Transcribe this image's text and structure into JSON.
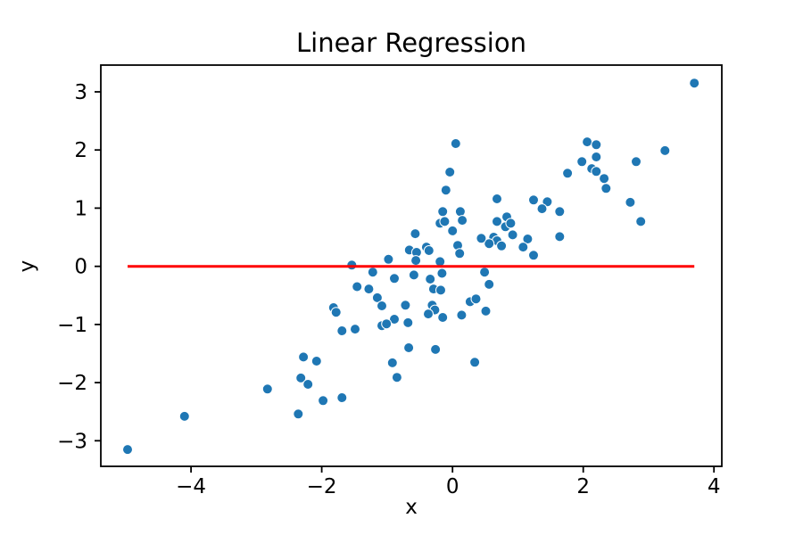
{
  "figure": {
    "background": "#ffffff",
    "text_color": "#000000"
  },
  "chart_data": {
    "type": "scatter",
    "title": "Linear Regression",
    "xlabel": "x",
    "ylabel": "y",
    "xlim": [
      -5.38,
      4.12
    ],
    "ylim": [
      -3.44,
      3.46
    ],
    "x_ticks": [
      -4,
      -2,
      0,
      2,
      4
    ],
    "y_ticks": [
      -3,
      -2,
      -1,
      0,
      1,
      2,
      3
    ],
    "grid": false,
    "legend": "none",
    "scatter": {
      "name": "data points",
      "color": "#1f77b4",
      "edge_color": "#ffffff",
      "points": [
        [
          -4.97,
          -3.15
        ],
        [
          -4.1,
          -2.58
        ],
        [
          -2.83,
          -2.11
        ],
        [
          -1.46,
          -0.35
        ],
        [
          -1.28,
          -0.39
        ],
        [
          -0.29,
          -0.39
        ],
        [
          -0.18,
          -0.41
        ],
        [
          -1.15,
          -0.54
        ],
        [
          -1.08,
          -0.68
        ],
        [
          -0.72,
          -0.67
        ],
        [
          -0.31,
          -0.67
        ],
        [
          -0.27,
          -0.75
        ],
        [
          -1.82,
          -0.71
        ],
        [
          -1.78,
          -0.79
        ],
        [
          0.14,
          -0.84
        ],
        [
          -0.15,
          -0.88
        ],
        [
          -0.37,
          -0.82
        ],
        [
          -0.89,
          -0.91
        ],
        [
          -0.68,
          -0.97
        ],
        [
          -1.08,
          -1.02
        ],
        [
          -1.01,
          -0.99
        ],
        [
          -1.69,
          -1.11
        ],
        [
          -1.49,
          -1.08
        ],
        [
          -0.67,
          -1.4
        ],
        [
          -0.26,
          -1.43
        ],
        [
          -2.28,
          -1.56
        ],
        [
          -2.08,
          -1.63
        ],
        [
          -0.92,
          -1.66
        ],
        [
          -0.85,
          -1.91
        ],
        [
          -2.32,
          -1.92
        ],
        [
          -2.21,
          -2.03
        ],
        [
          -1.98,
          -2.31
        ],
        [
          -1.69,
          -2.26
        ],
        [
          -2.36,
          -2.54
        ],
        [
          0.05,
          2.11
        ],
        [
          -0.04,
          1.62
        ],
        [
          -0.1,
          1.31
        ],
        [
          0.68,
          1.16
        ],
        [
          1.24,
          1.14
        ],
        [
          1.45,
          1.11
        ],
        [
          1.37,
          0.99
        ],
        [
          -0.15,
          0.94
        ],
        [
          0.12,
          0.94
        ],
        [
          -0.19,
          0.74
        ],
        [
          -0.12,
          0.77
        ],
        [
          0.15,
          0.79
        ],
        [
          0.83,
          0.85
        ],
        [
          0.68,
          0.77
        ],
        [
          0.81,
          0.68
        ],
        [
          0.89,
          0.74
        ],
        [
          -0.57,
          0.56
        ],
        [
          0.0,
          0.61
        ],
        [
          0.92,
          0.54
        ],
        [
          0.63,
          0.5
        ],
        [
          0.68,
          0.44
        ],
        [
          0.56,
          0.39
        ],
        [
          0.44,
          0.48
        ],
        [
          1.15,
          0.47
        ],
        [
          -0.66,
          0.28
        ],
        [
          -0.55,
          0.24
        ],
        [
          -0.4,
          0.33
        ],
        [
          -0.36,
          0.27
        ],
        [
          0.08,
          0.36
        ],
        [
          0.11,
          0.22
        ],
        [
          0.75,
          0.35
        ],
        [
          1.08,
          0.33
        ],
        [
          1.24,
          0.19
        ],
        [
          -0.98,
          0.12
        ],
        [
          -0.56,
          0.1
        ],
        [
          -0.19,
          0.08
        ],
        [
          -1.54,
          0.02
        ],
        [
          -1.22,
          -0.1
        ],
        [
          -0.89,
          -0.21
        ],
        [
          -0.59,
          -0.15
        ],
        [
          -0.34,
          -0.22
        ],
        [
          -0.16,
          -0.12
        ],
        [
          0.49,
          -0.1
        ],
        [
          0.56,
          -0.31
        ],
        [
          2.06,
          2.14
        ],
        [
          2.2,
          2.09
        ],
        [
          2.2,
          1.88
        ],
        [
          1.98,
          1.8
        ],
        [
          3.25,
          1.99
        ],
        [
          2.81,
          1.8
        ],
        [
          1.76,
          1.6
        ],
        [
          2.13,
          1.68
        ],
        [
          2.2,
          1.63
        ],
        [
          2.32,
          1.51
        ],
        [
          2.35,
          1.34
        ],
        [
          2.72,
          1.1
        ],
        [
          1.64,
          0.94
        ],
        [
          2.88,
          0.77
        ],
        [
          1.64,
          0.51
        ],
        [
          0.27,
          -0.61
        ],
        [
          0.36,
          -0.56
        ],
        [
          0.51,
          -0.77
        ],
        [
          0.34,
          -1.65
        ],
        [
          3.7,
          3.15
        ]
      ]
    },
    "regression_line": {
      "name": "fitted line",
      "color": "#ff0000",
      "x": [
        -4.97,
        3.7
      ],
      "y": [
        0,
        0
      ]
    }
  }
}
